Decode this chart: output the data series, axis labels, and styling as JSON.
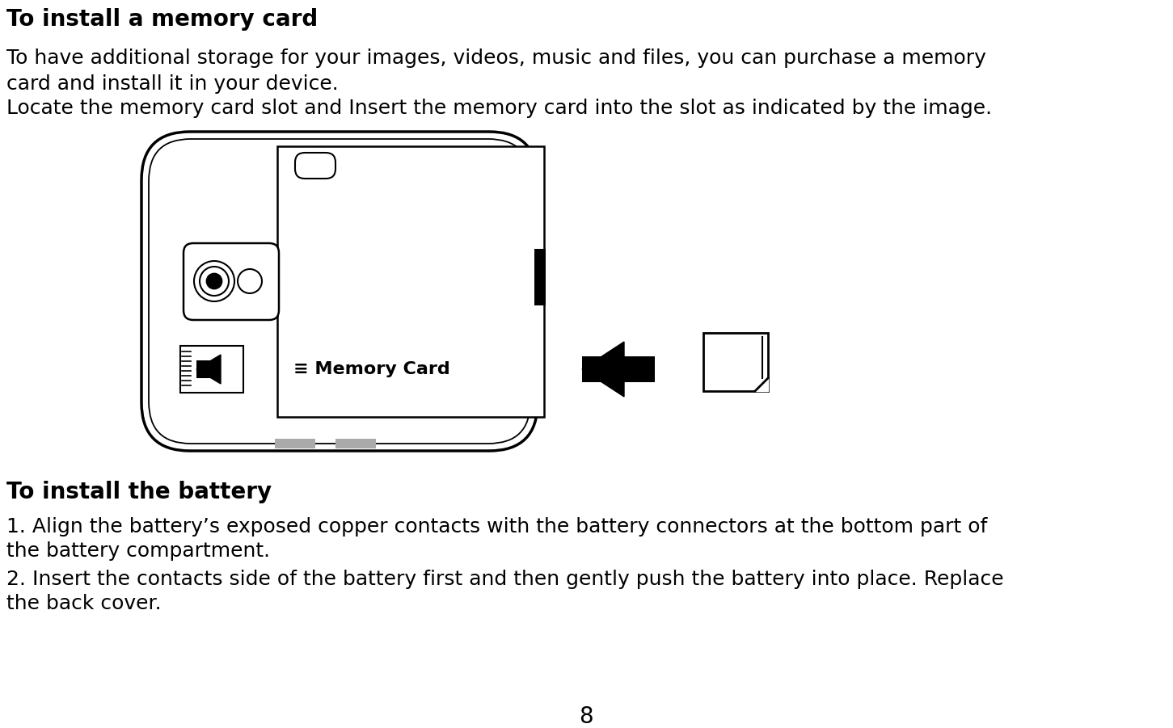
{
  "bg_color": "#ffffff",
  "title1": "To install a memory card",
  "para1_line1": "To have additional storage for your images, videos, music and files, you can purchase a memory",
  "para1_line2": "card and install it in your device.",
  "para1_line3": "Locate the memory card slot and Insert the memory card into the slot as indicated by the image.",
  "title2": "To install the battery",
  "para2_line1": "1. Align the battery’s exposed copper contacts with the battery connectors at the bottom part of",
  "para2_line2": "the battery compartment.",
  "para2_line3": "2. Insert the contacts side of the battery first and then gently push the battery into place. Replace",
  "para2_line4": "the back cover.",
  "page_number": "8",
  "memory_card_label": "Memory Card",
  "text_color": "#000000"
}
